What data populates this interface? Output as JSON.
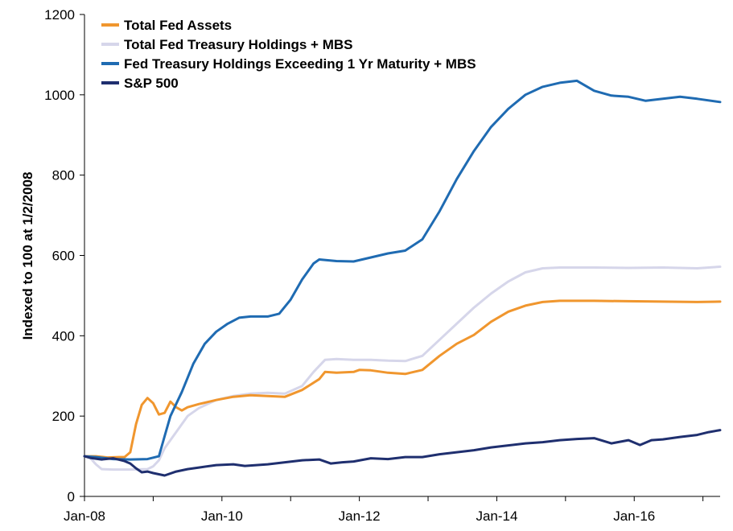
{
  "chart_data": {
    "type": "line",
    "title": "",
    "xlabel": "",
    "ylabel": "Indexed to 100 at 1/2/2008",
    "x_ticks": [
      "Jan-08",
      "Jan-10",
      "Jan-12",
      "Jan-14",
      "Jan-16"
    ],
    "y_ticks": [
      "0",
      "200",
      "400",
      "600",
      "800",
      "1000",
      "1200"
    ],
    "ylim": [
      0,
      1200
    ],
    "xlim": [
      "2008-01",
      "2017-04"
    ],
    "grid": false,
    "legend_position": "top-left",
    "series": [
      {
        "name": "Total Fed Assets",
        "color": "#f0962e",
        "points": [
          [
            "2008-01",
            100
          ],
          [
            "2008-03",
            100
          ],
          [
            "2008-05",
            97
          ],
          [
            "2008-07",
            98
          ],
          [
            "2008-08",
            98
          ],
          [
            "2008-09",
            110
          ],
          [
            "2008-10",
            180
          ],
          [
            "2008-11",
            228
          ],
          [
            "2008-12",
            245
          ],
          [
            "2009-01",
            232
          ],
          [
            "2009-02",
            204
          ],
          [
            "2009-03",
            208
          ],
          [
            "2009-04",
            236
          ],
          [
            "2009-05",
            222
          ],
          [
            "2009-06",
            214
          ],
          [
            "2009-07",
            222
          ],
          [
            "2009-09",
            230
          ],
          [
            "2009-12",
            240
          ],
          [
            "2010-03",
            248
          ],
          [
            "2010-06",
            252
          ],
          [
            "2010-09",
            250
          ],
          [
            "2010-12",
            248
          ],
          [
            "2011-03",
            265
          ],
          [
            "2011-06",
            292
          ],
          [
            "2011-07",
            310
          ],
          [
            "2011-09",
            308
          ],
          [
            "2011-12",
            310
          ],
          [
            "2012-01",
            315
          ],
          [
            "2012-03",
            314
          ],
          [
            "2012-06",
            308
          ],
          [
            "2012-09",
            305
          ],
          [
            "2012-12",
            315
          ],
          [
            "2013-03",
            350
          ],
          [
            "2013-06",
            380
          ],
          [
            "2013-09",
            402
          ],
          [
            "2013-12",
            435
          ],
          [
            "2014-03",
            460
          ],
          [
            "2014-06",
            475
          ],
          [
            "2014-09",
            484
          ],
          [
            "2014-12",
            487
          ],
          [
            "2015-06",
            487
          ],
          [
            "2015-12",
            486
          ],
          [
            "2016-06",
            485
          ],
          [
            "2016-12",
            484
          ],
          [
            "2017-04",
            485
          ]
        ]
      },
      {
        "name": "Total Fed Treasury Holdings + MBS",
        "color": "#d6d6ea",
        "points": [
          [
            "2008-01",
            100
          ],
          [
            "2008-02",
            96
          ],
          [
            "2008-03",
            80
          ],
          [
            "2008-04",
            68
          ],
          [
            "2008-06",
            67
          ],
          [
            "2008-09",
            67
          ],
          [
            "2008-12",
            68
          ],
          [
            "2009-01",
            75
          ],
          [
            "2009-02",
            90
          ],
          [
            "2009-03",
            120
          ],
          [
            "2009-05",
            160
          ],
          [
            "2009-07",
            200
          ],
          [
            "2009-09",
            220
          ],
          [
            "2009-12",
            240
          ],
          [
            "2010-03",
            250
          ],
          [
            "2010-06",
            256
          ],
          [
            "2010-09",
            258
          ],
          [
            "2010-12",
            256
          ],
          [
            "2011-03",
            275
          ],
          [
            "2011-05",
            310
          ],
          [
            "2011-07",
            340
          ],
          [
            "2011-09",
            342
          ],
          [
            "2011-12",
            340
          ],
          [
            "2012-03",
            340
          ],
          [
            "2012-06",
            338
          ],
          [
            "2012-09",
            337
          ],
          [
            "2012-12",
            350
          ],
          [
            "2013-03",
            390
          ],
          [
            "2013-06",
            430
          ],
          [
            "2013-09",
            470
          ],
          [
            "2013-12",
            505
          ],
          [
            "2014-03",
            535
          ],
          [
            "2014-06",
            558
          ],
          [
            "2014-09",
            568
          ],
          [
            "2014-12",
            570
          ],
          [
            "2015-06",
            570
          ],
          [
            "2015-12",
            569
          ],
          [
            "2016-06",
            570
          ],
          [
            "2016-12",
            568
          ],
          [
            "2017-04",
            572
          ]
        ]
      },
      {
        "name": "Fed Treasury Holdings Exceeding 1 Yr Maturity + MBS",
        "color": "#1f6bb2",
        "points": [
          [
            "2008-01",
            100
          ],
          [
            "2008-03",
            98
          ],
          [
            "2008-06",
            93
          ],
          [
            "2008-09",
            92
          ],
          [
            "2008-12",
            93
          ],
          [
            "2009-02",
            100
          ],
          [
            "2009-03",
            150
          ],
          [
            "2009-04",
            200
          ],
          [
            "2009-06",
            260
          ],
          [
            "2009-08",
            330
          ],
          [
            "2009-10",
            380
          ],
          [
            "2009-12",
            410
          ],
          [
            "2010-02",
            430
          ],
          [
            "2010-04",
            445
          ],
          [
            "2010-06",
            448
          ],
          [
            "2010-09",
            448
          ],
          [
            "2010-11",
            455
          ],
          [
            "2011-01",
            490
          ],
          [
            "2011-03",
            540
          ],
          [
            "2011-05",
            580
          ],
          [
            "2011-06",
            590
          ],
          [
            "2011-09",
            586
          ],
          [
            "2011-12",
            585
          ],
          [
            "2012-03",
            595
          ],
          [
            "2012-06",
            605
          ],
          [
            "2012-09",
            612
          ],
          [
            "2012-12",
            640
          ],
          [
            "2013-03",
            710
          ],
          [
            "2013-06",
            790
          ],
          [
            "2013-09",
            860
          ],
          [
            "2013-12",
            920
          ],
          [
            "2014-03",
            965
          ],
          [
            "2014-06",
            1000
          ],
          [
            "2014-09",
            1020
          ],
          [
            "2014-12",
            1030
          ],
          [
            "2015-03",
            1035
          ],
          [
            "2015-06",
            1010
          ],
          [
            "2015-09",
            998
          ],
          [
            "2015-12",
            995
          ],
          [
            "2016-03",
            985
          ],
          [
            "2016-06",
            990
          ],
          [
            "2016-09",
            995
          ],
          [
            "2016-12",
            990
          ],
          [
            "2017-04",
            982
          ]
        ]
      },
      {
        "name": "S&P 500",
        "color": "#1f2f6f",
        "points": [
          [
            "2008-01",
            100
          ],
          [
            "2008-02",
            96
          ],
          [
            "2008-04",
            92
          ],
          [
            "2008-06",
            95
          ],
          [
            "2008-08",
            88
          ],
          [
            "2008-09",
            82
          ],
          [
            "2008-10",
            70
          ],
          [
            "2008-11",
            60
          ],
          [
            "2008-12",
            62
          ],
          [
            "2009-01",
            58
          ],
          [
            "2009-03",
            52
          ],
          [
            "2009-05",
            62
          ],
          [
            "2009-07",
            68
          ],
          [
            "2009-09",
            72
          ],
          [
            "2009-12",
            78
          ],
          [
            "2010-03",
            80
          ],
          [
            "2010-05",
            76
          ],
          [
            "2010-07",
            78
          ],
          [
            "2010-09",
            80
          ],
          [
            "2010-12",
            85
          ],
          [
            "2011-03",
            90
          ],
          [
            "2011-06",
            92
          ],
          [
            "2011-08",
            82
          ],
          [
            "2011-10",
            85
          ],
          [
            "2011-12",
            87
          ],
          [
            "2012-03",
            95
          ],
          [
            "2012-06",
            93
          ],
          [
            "2012-09",
            98
          ],
          [
            "2012-12",
            98
          ],
          [
            "2013-03",
            105
          ],
          [
            "2013-06",
            110
          ],
          [
            "2013-09",
            115
          ],
          [
            "2013-12",
            122
          ],
          [
            "2014-03",
            127
          ],
          [
            "2014-06",
            132
          ],
          [
            "2014-09",
            135
          ],
          [
            "2014-12",
            140
          ],
          [
            "2015-03",
            143
          ],
          [
            "2015-06",
            145
          ],
          [
            "2015-09",
            132
          ],
          [
            "2015-12",
            140
          ],
          [
            "2016-02",
            128
          ],
          [
            "2016-04",
            140
          ],
          [
            "2016-06",
            142
          ],
          [
            "2016-09",
            148
          ],
          [
            "2016-12",
            153
          ],
          [
            "2017-02",
            160
          ],
          [
            "2017-04",
            165
          ]
        ]
      }
    ]
  }
}
